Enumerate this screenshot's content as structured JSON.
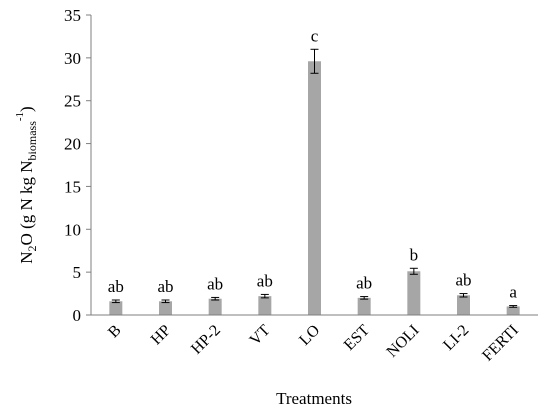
{
  "chart_data": {
    "type": "bar",
    "title": "",
    "xlabel": "Treatments",
    "ylabel": {
      "prefix": "N",
      "prefix_sub": "2",
      "mid": "O (g N kg  N",
      "mid_sub": "biomass",
      "sup": "-1",
      "close": ")"
    },
    "ylim": [
      0,
      35
    ],
    "yticks": [
      0,
      5,
      10,
      15,
      20,
      25,
      30,
      35
    ],
    "categories": [
      "B",
      "HP",
      "HP-2",
      "VT",
      "LO",
      "EST",
      "NOLI",
      "LI-2",
      "FERTI"
    ],
    "values": [
      1.6,
      1.6,
      1.9,
      2.2,
      29.6,
      2.0,
      5.1,
      2.3,
      1.0
    ],
    "errors": [
      0.15,
      0.15,
      0.15,
      0.2,
      1.4,
      0.15,
      0.35,
      0.2,
      0.1
    ],
    "significance_letters": [
      "ab",
      "ab",
      "ab",
      "ab",
      "c",
      "ab",
      "b",
      "ab",
      "a"
    ],
    "grid": false,
    "legend": "none",
    "colors": {
      "bar": "#a6a6a6",
      "axis": "#7f7f7f",
      "text": "#000000",
      "error": "#000000"
    }
  }
}
